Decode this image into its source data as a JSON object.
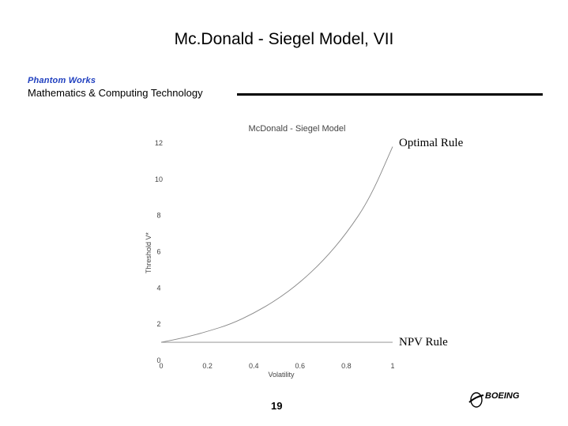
{
  "slide": {
    "title": "Mc.Donald - Siegel Model, VII",
    "logo_text": "Phantom Works",
    "department": "Mathematics & Computing Technology",
    "page_number": "19",
    "brand": "BOEING"
  },
  "chart_data": {
    "type": "line",
    "title": "McDonald - Siegel Model",
    "xlabel": "Volatility",
    "ylabel": "Threshold V*",
    "xlim": [
      0,
      1
    ],
    "ylim": [
      0,
      12
    ],
    "xticks": [
      "0",
      "0.2",
      "0.4",
      "0.6",
      "0.8",
      "1"
    ],
    "yticks": [
      "0",
      "2",
      "4",
      "6",
      "8",
      "10",
      "12"
    ],
    "grid": false,
    "series": [
      {
        "name": "Optimal Rule",
        "x": [
          0,
          0.1,
          0.2,
          0.3,
          0.4,
          0.5,
          0.6,
          0.7,
          0.8,
          0.9,
          1.0
        ],
        "y": [
          1.0,
          1.25,
          1.6,
          2.0,
          2.6,
          3.35,
          4.3,
          5.5,
          7.0,
          8.9,
          11.8
        ]
      },
      {
        "name": "NPV Rule",
        "x": [
          0,
          1
        ],
        "y": [
          1.0,
          1.0
        ]
      }
    ],
    "annotations": [
      "Optimal Rule",
      "NPV Rule"
    ]
  }
}
